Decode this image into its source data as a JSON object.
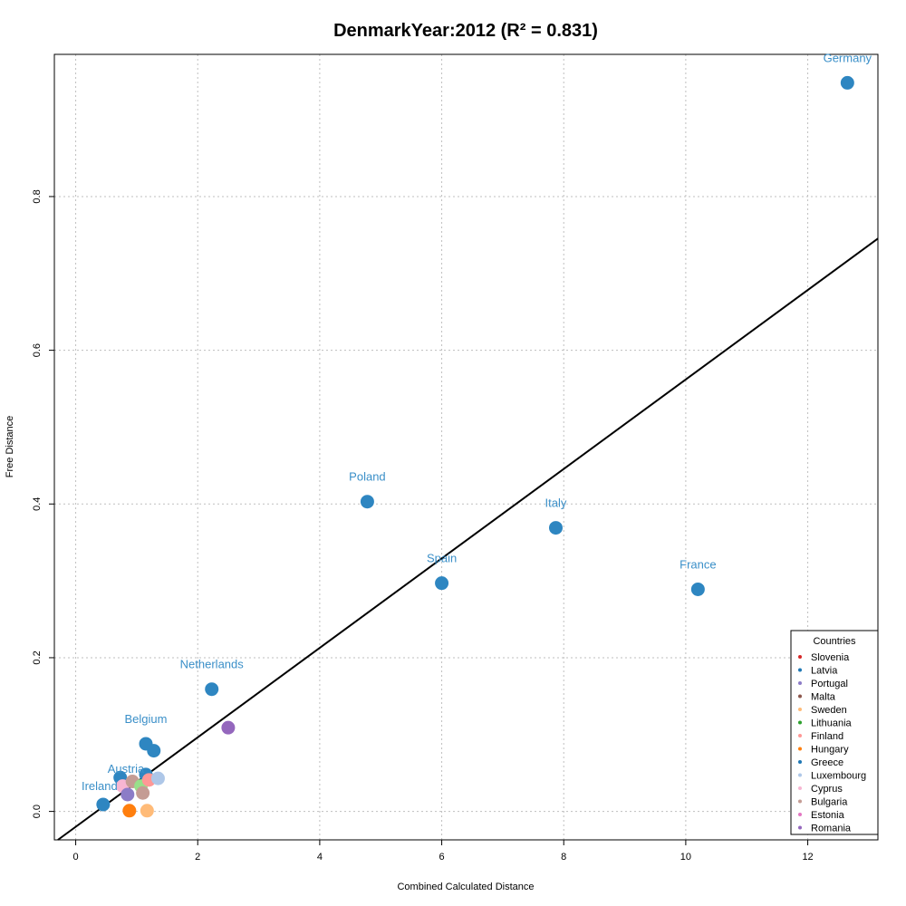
{
  "chart_data": {
    "type": "scatter",
    "title": "DenmarkYear:2012 (R² = 0.831)",
    "xlabel": "Combined Calculated Distance",
    "ylabel": "Free Distance",
    "xlim": [
      -0.35,
      13.15
    ],
    "ylim": [
      -0.037,
      0.985
    ],
    "x_ticks": [
      0,
      2,
      4,
      6,
      8,
      10,
      12
    ],
    "y_ticks": [
      0.0,
      0.2,
      0.4,
      0.6,
      0.8
    ],
    "x_tick_labels": [
      "0",
      "2",
      "4",
      "6",
      "8",
      "10",
      "12"
    ],
    "y_tick_labels": [
      "0.0",
      "0.2",
      "0.4",
      "0.6",
      "0.8"
    ],
    "grid": true,
    "regression_line": {
      "intercept": -0.02,
      "slope": 0.0582
    },
    "points": [
      {
        "label": "Germany",
        "x": 12.65,
        "y": 0.948,
        "color": "#2e86c1"
      },
      {
        "label": "Poland",
        "x": 4.78,
        "y": 0.403,
        "color": "#2e86c1"
      },
      {
        "label": "Italy",
        "x": 7.87,
        "y": 0.369,
        "color": "#2e86c1"
      },
      {
        "label": "Spain",
        "x": 6.0,
        "y": 0.297,
        "color": "#2e86c1"
      },
      {
        "label": "France",
        "x": 10.2,
        "y": 0.289,
        "color": "#2e86c1"
      },
      {
        "label": "Netherlands",
        "x": 2.23,
        "y": 0.159,
        "color": "#2e86c1"
      },
      {
        "label": "Belgium",
        "x": 1.15,
        "y": 0.088,
        "color": "#2e86c1"
      },
      {
        "label": "Austria",
        "x": 1.15,
        "y": 0.048,
        "color": "#2e86c1"
      },
      {
        "label": "Ireland",
        "x": 0.45,
        "y": 0.009,
        "color": "#2e86c1"
      },
      {
        "label": "",
        "x": 1.28,
        "y": 0.079,
        "color": "#2e86c1"
      },
      {
        "label": "",
        "x": 0.73,
        "y": 0.044,
        "color": "#2e86c1"
      },
      {
        "label": "",
        "x": 2.5,
        "y": 0.109,
        "color": "#9467bd"
      },
      {
        "label": "",
        "x": 0.77,
        "y": 0.033,
        "color": "#f7b6d2"
      },
      {
        "label": "",
        "x": 0.93,
        "y": 0.039,
        "color": "#c49c94"
      },
      {
        "label": "",
        "x": 1.07,
        "y": 0.033,
        "color": "#98df8a"
      },
      {
        "label": "",
        "x": 1.2,
        "y": 0.041,
        "color": "#ff9896"
      },
      {
        "label": "",
        "x": 1.35,
        "y": 0.043,
        "color": "#aec7e8"
      },
      {
        "label": "",
        "x": 0.85,
        "y": 0.022,
        "color": "#8c7cc7"
      },
      {
        "label": "",
        "x": 1.1,
        "y": 0.024,
        "color": "#c49c94"
      },
      {
        "label": "",
        "x": 0.88,
        "y": 0.001,
        "color": "#ff7f0e"
      },
      {
        "label": "",
        "x": 1.17,
        "y": 0.001,
        "color": "#ffbb78"
      }
    ],
    "legend": {
      "title": "Countries",
      "placement": "bottom-right",
      "entries": [
        {
          "name": "Slovenia",
          "color": "#d62728"
        },
        {
          "name": "Latvia",
          "color": "#1f77b4"
        },
        {
          "name": "Portugal",
          "color": "#8c7cc7"
        },
        {
          "name": "Malta",
          "color": "#8c564b"
        },
        {
          "name": "Sweden",
          "color": "#ffbb78"
        },
        {
          "name": "Lithuania",
          "color": "#2ca02c"
        },
        {
          "name": "Finland",
          "color": "#ff9896"
        },
        {
          "name": "Hungary",
          "color": "#ff7f0e"
        },
        {
          "name": "Greece",
          "color": "#1f77b4"
        },
        {
          "name": "Luxembourg",
          "color": "#aec7e8"
        },
        {
          "name": "Cyprus",
          "color": "#f7b6d2"
        },
        {
          "name": "Bulgaria",
          "color": "#c49c94"
        },
        {
          "name": "Estonia",
          "color": "#e377c2"
        },
        {
          "name": "Romania",
          "color": "#9467bd"
        }
      ]
    }
  }
}
